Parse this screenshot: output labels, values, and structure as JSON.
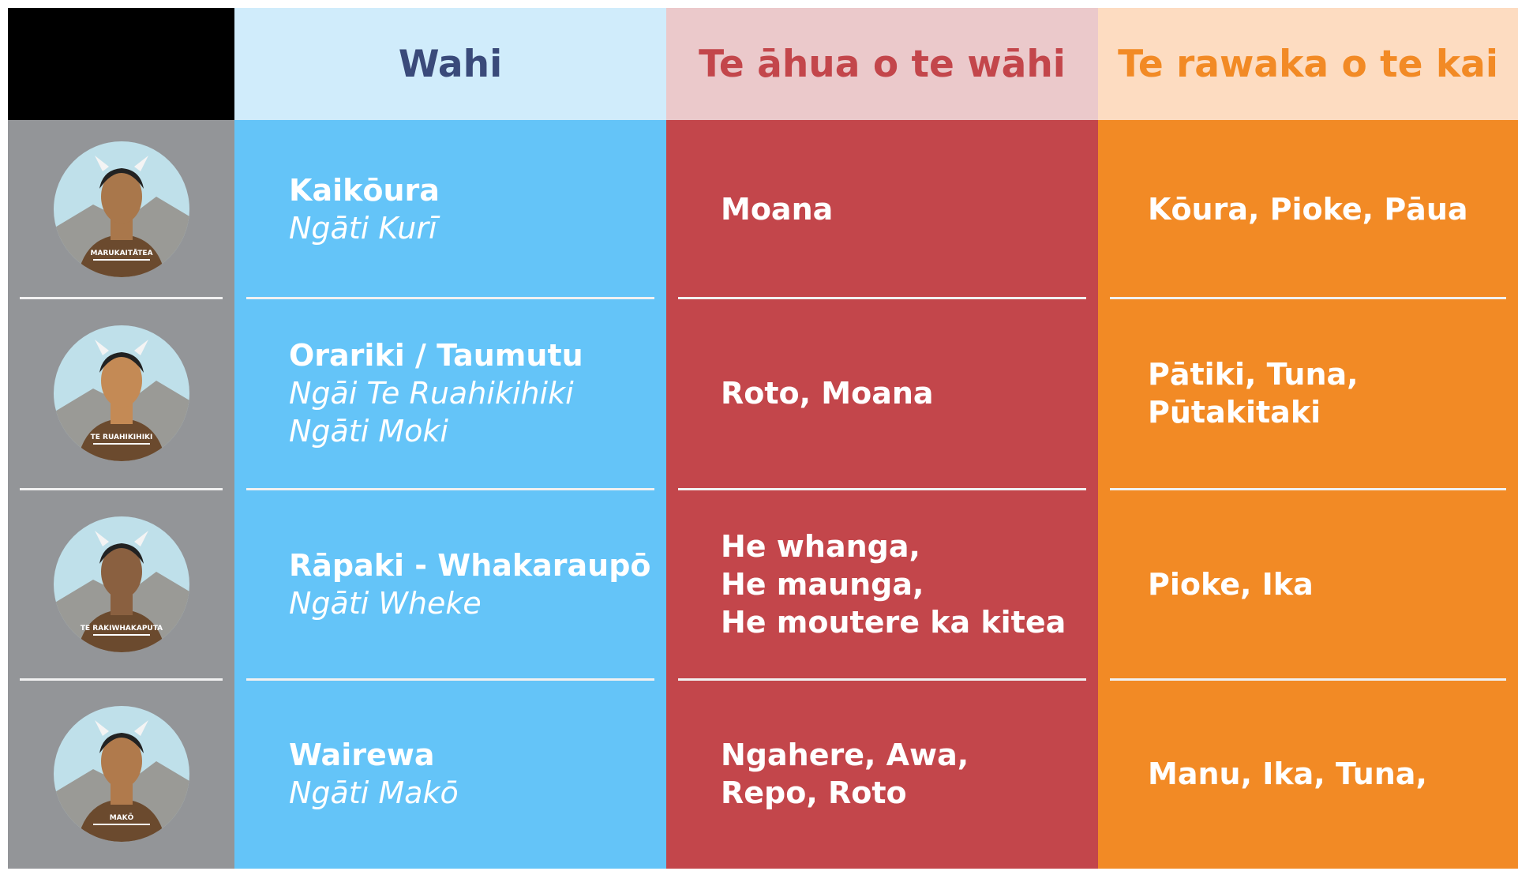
{
  "header": {
    "columns": [
      "Wahi",
      "Te āhua o te wāhi",
      "Te rawaka o te kai"
    ]
  },
  "rows": [
    {
      "portrait": "MARUKAITĀTEA",
      "place": "Kaikōura",
      "iwi": [
        "Ngāti Kurī"
      ],
      "features": [
        "Moana"
      ],
      "food": [
        "Kōura, Pioke, Pāua"
      ]
    },
    {
      "portrait": "TE RUAHIKIHIKI",
      "place": "Orariki / Taumutu",
      "iwi": [
        "Ngāi Te Ruahikihiki",
        "Ngāti Moki"
      ],
      "features": [
        "Roto, Moana"
      ],
      "food": [
        "Pātiki, Tuna,",
        "Pūtakitaki"
      ]
    },
    {
      "portrait": "TE RAKIWHAKAPUTA",
      "place": "Rāpaki - Whakaraupō",
      "iwi": [
        "Ngāti Wheke"
      ],
      "features": [
        "He whanga,",
        "He maunga,",
        "He moutere ka kitea"
      ],
      "food": [
        "Pioke, Ika"
      ]
    },
    {
      "portrait": "MAKŌ",
      "place": "Wairewa",
      "iwi": [
        "Ngāti Makō"
      ],
      "features": [
        "Ngahere, Awa,",
        "Repo, Roto"
      ],
      "food": [
        "Manu, Ika, Tuna,"
      ]
    }
  ]
}
